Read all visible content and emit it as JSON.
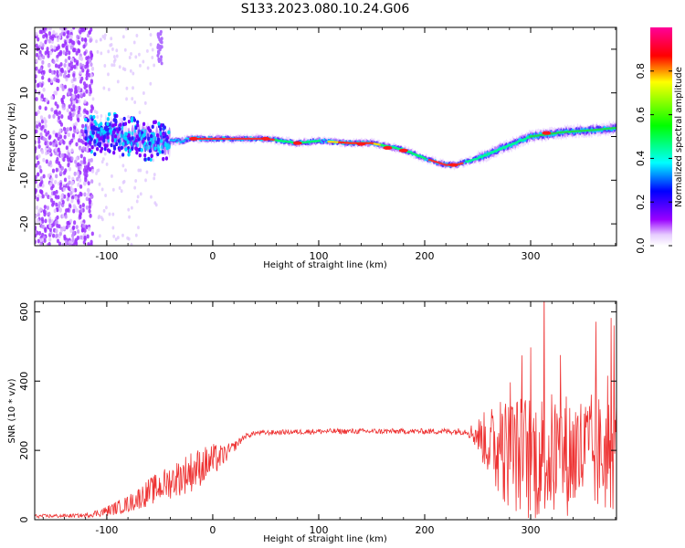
{
  "title": "S133.2023.080.10.24.G06",
  "chart_data": [
    {
      "type": "heatmap",
      "name": "spectrogram",
      "xlabel": "Height of straight line (km)",
      "ylabel": "Frequency (Hz)",
      "xlim": [
        -168,
        381
      ],
      "ylim": [
        -25,
        25
      ],
      "xticks": [
        -100,
        0,
        100,
        200,
        300
      ],
      "yticks": [
        -20,
        -10,
        0,
        10,
        20
      ],
      "ridge": {
        "x": [
          -120,
          -100,
          -80,
          -60,
          -45,
          -30,
          -20,
          0,
          20,
          50,
          80,
          100,
          130,
          150,
          180,
          200,
          220,
          230,
          250,
          270,
          300,
          330,
          360,
          381
        ],
        "y": [
          0,
          1,
          0,
          -1,
          -1,
          -1,
          -0.5,
          -0.5,
          -0.5,
          -0.5,
          -1.5,
          -1,
          -1.5,
          -1.5,
          -3,
          -5,
          -6.5,
          -6.5,
          -5,
          -3,
          0,
          1,
          1.5,
          2
        ]
      },
      "colorbar": {
        "label": "Normalized spectral amplitude",
        "ticks": [
          0.0,
          0.2,
          0.4,
          0.6,
          0.8
        ],
        "range": [
          0,
          1
        ]
      }
    },
    {
      "type": "line",
      "name": "snr",
      "xlabel": "Height of straight line (km)",
      "ylabel": "SNR (10 * v/v)",
      "xlim": [
        -168,
        381
      ],
      "ylim": [
        0,
        630
      ],
      "xticks": [
        -100,
        0,
        100,
        200,
        300
      ],
      "yticks": [
        0,
        200,
        400,
        600
      ],
      "color": "#ee3333",
      "envelope": {
        "x": [
          -168,
          -120,
          -100,
          -80,
          -60,
          -40,
          -20,
          0,
          10,
          20,
          30,
          40,
          60,
          100,
          150,
          200,
          240,
          250,
          270,
          300,
          340,
          381
        ],
        "mean": [
          10,
          12,
          25,
          45,
          80,
          110,
          140,
          170,
          185,
          210,
          240,
          250,
          252,
          255,
          255,
          255,
          255,
          245,
          200,
          180,
          190,
          190
        ],
        "spread": [
          5,
          6,
          15,
          25,
          40,
          50,
          60,
          50,
          30,
          15,
          8,
          7,
          7,
          8,
          8,
          8,
          10,
          50,
          150,
          190,
          180,
          170
        ]
      }
    }
  ]
}
